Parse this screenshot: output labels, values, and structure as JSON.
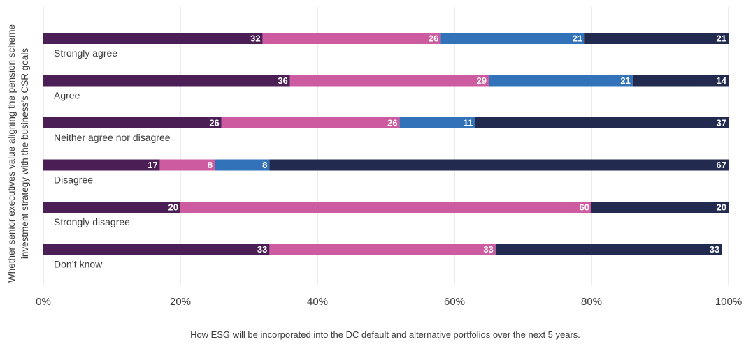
{
  "chart_data": {
    "type": "bar",
    "orientation": "horizontal-stacked-100",
    "categories": [
      "Strongly agree",
      "Agree",
      "Neither agree nor disagree",
      "Disagree",
      "Strongly disagree",
      "Don’t know"
    ],
    "series": [
      {
        "color": "#4b1f56",
        "values": [
          32,
          36,
          26,
          17,
          20,
          33
        ]
      },
      {
        "color": "#cc5c9f",
        "values": [
          26,
          29,
          26,
          8,
          60,
          33
        ]
      },
      {
        "color": "#3272b8",
        "values": [
          21,
          21,
          11,
          8,
          0,
          0
        ]
      },
      {
        "color": "#222b4f",
        "values": [
          21,
          14,
          37,
          67,
          20,
          33
        ]
      }
    ],
    "ylabel_lines": [
      "Whether senior executives value aligning the pension scheme",
      "investment strategy with the business’s CSR goals"
    ],
    "xlabel": "How ESG will be incorporated into the DC default and alternative portfolios over the next 5 years.",
    "xlim": [
      0,
      100
    ],
    "x_ticks": [
      "0%",
      "20%",
      "40%",
      "60%",
      "80%",
      "100%"
    ],
    "grid": true,
    "legend": "none"
  }
}
